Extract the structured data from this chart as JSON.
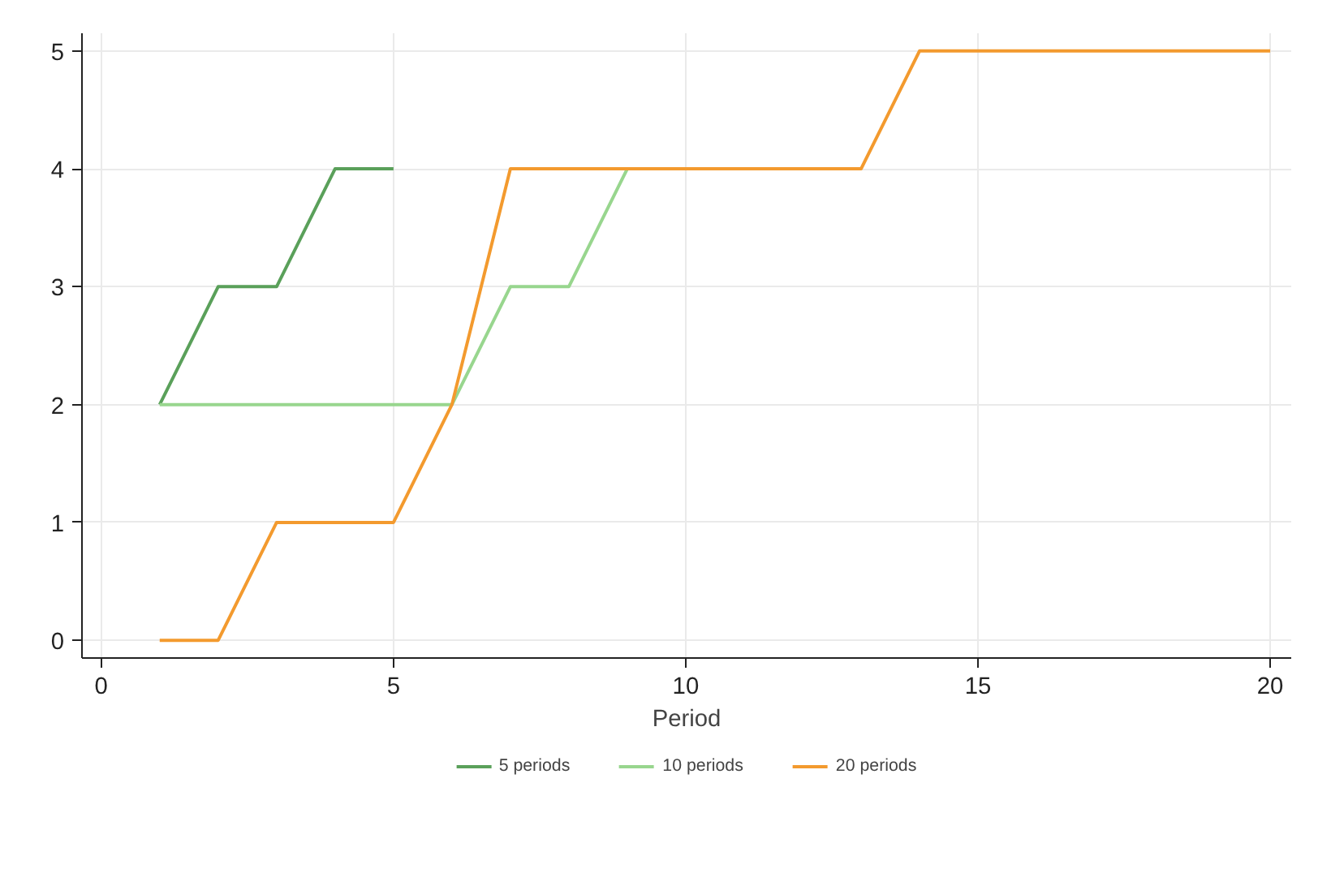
{
  "chart_data": {
    "type": "line",
    "xlabel": "Period",
    "series": [
      {
        "name": "5 periods",
        "color": "#5aa05a",
        "x": [
          1,
          2,
          3,
          4,
          5
        ],
        "values": [
          2,
          3,
          3,
          4,
          4
        ]
      },
      {
        "name": "10 periods",
        "color": "#98d68e",
        "x": [
          1,
          2,
          3,
          4,
          5,
          6,
          7,
          8,
          9
        ],
        "values": [
          2,
          2,
          2,
          2,
          2,
          2,
          3,
          3,
          4
        ]
      },
      {
        "name": "20 periods",
        "color": "#f39a2e",
        "x": [
          1,
          2,
          3,
          4,
          5,
          6,
          7,
          8,
          9,
          10,
          11,
          12,
          13,
          14,
          15,
          16,
          17,
          18,
          19,
          20
        ],
        "values": [
          0,
          0,
          1,
          1,
          1,
          2,
          4,
          4,
          4,
          4,
          4,
          4,
          4,
          5,
          5,
          5,
          5,
          5,
          5,
          5
        ]
      }
    ],
    "xlim": [
      -0.33,
      20.36
    ],
    "xticks": [
      0,
      5,
      10,
      15,
      20
    ],
    "ylim": [
      -0.15,
      5.15
    ],
    "yticks": [
      0,
      1,
      2,
      3,
      4,
      5
    ],
    "grid": true,
    "legend": "bottom",
    "marker": "none",
    "line_style": "solid"
  }
}
